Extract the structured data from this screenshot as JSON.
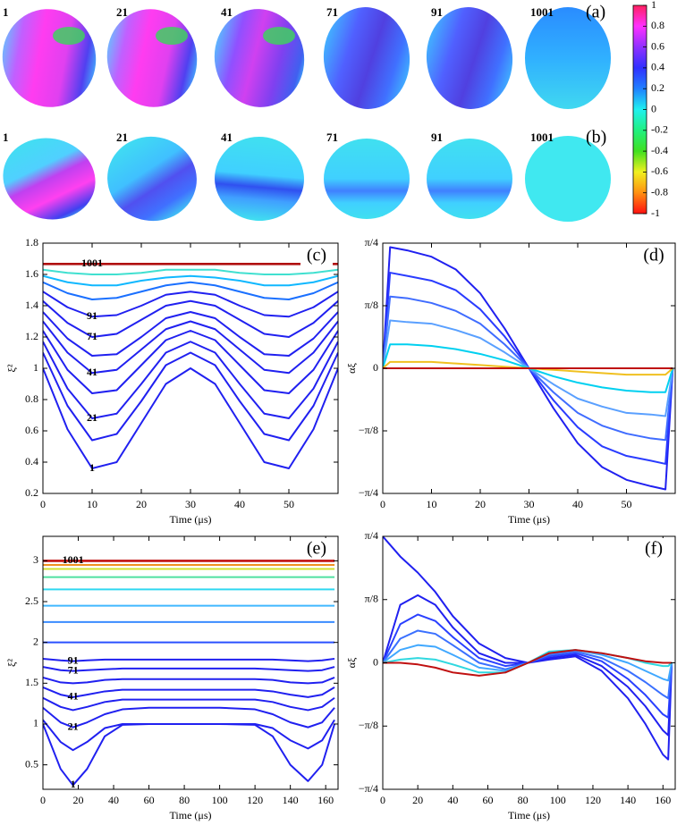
{
  "figure": {
    "rows": [
      {
        "panel": "(a)",
        "frames": [
          "1",
          "21",
          "41",
          "71",
          "91",
          "1001"
        ]
      },
      {
        "panel": "(b)",
        "frames": [
          "1",
          "21",
          "41",
          "71",
          "91",
          "1001"
        ]
      }
    ],
    "colorbar": {
      "ylim": [
        -1,
        1
      ],
      "yticks": [
        1,
        0.8,
        0.6,
        0.4,
        0.2,
        0,
        -0.2,
        -0.4,
        -0.6,
        -0.8,
        -1
      ]
    }
  },
  "chart_data": [
    {
      "type": "line",
      "panel_label": "(c)",
      "xlabel": "Time (μs)",
      "ylabel": "ξ²",
      "xlim": [
        0,
        60
      ],
      "xticks": [
        0,
        10,
        20,
        30,
        40,
        50
      ],
      "ylim": [
        0.2,
        1.8
      ],
      "yticks": [
        0.2,
        0.4,
        0.6,
        0.8,
        1,
        1.2,
        1.4,
        1.6,
        1.8
      ],
      "x": [
        0,
        5,
        10,
        15,
        20,
        25,
        30,
        35,
        40,
        45,
        50,
        55,
        60
      ],
      "series": [
        {
          "name": "1",
          "color": "#2020f0",
          "values": [
            1.0,
            0.61,
            0.36,
            0.4,
            0.65,
            0.9,
            1.0,
            0.9,
            0.65,
            0.4,
            0.36,
            0.61,
            1.0
          ]
        },
        {
          "color": "#2020f0",
          "values": [
            1.1,
            0.76,
            0.54,
            0.58,
            0.79,
            1.02,
            1.1,
            1.02,
            0.79,
            0.58,
            0.54,
            0.76,
            1.1
          ]
        },
        {
          "name": "21",
          "color": "#2020f0",
          "values": [
            1.17,
            0.87,
            0.68,
            0.71,
            0.9,
            1.1,
            1.17,
            1.1,
            0.9,
            0.71,
            0.68,
            0.87,
            1.17
          ]
        },
        {
          "color": "#2020f0",
          "values": [
            1.24,
            0.99,
            0.84,
            0.86,
            1.02,
            1.18,
            1.24,
            1.18,
            1.02,
            0.86,
            0.84,
            0.99,
            1.24
          ]
        },
        {
          "name": "41",
          "color": "#2020f0",
          "values": [
            1.3,
            1.1,
            0.97,
            0.99,
            1.12,
            1.25,
            1.3,
            1.25,
            1.12,
            0.99,
            0.97,
            1.1,
            1.3
          ]
        },
        {
          "color": "#2020f0",
          "values": [
            1.36,
            1.19,
            1.08,
            1.09,
            1.2,
            1.32,
            1.36,
            1.32,
            1.2,
            1.09,
            1.08,
            1.19,
            1.36
          ]
        },
        {
          "name": "71",
          "color": "#2020f0",
          "values": [
            1.43,
            1.29,
            1.2,
            1.22,
            1.31,
            1.4,
            1.43,
            1.4,
            1.31,
            1.22,
            1.2,
            1.29,
            1.43
          ]
        },
        {
          "name": "91",
          "color": "#2020f0",
          "values": [
            1.49,
            1.39,
            1.33,
            1.34,
            1.4,
            1.47,
            1.49,
            1.47,
            1.4,
            1.34,
            1.33,
            1.39,
            1.49
          ]
        },
        {
          "color": "#1a70ff",
          "values": [
            1.55,
            1.48,
            1.44,
            1.45,
            1.49,
            1.53,
            1.55,
            1.53,
            1.49,
            1.45,
            1.44,
            1.48,
            1.55
          ]
        },
        {
          "color": "#10b8ff",
          "values": [
            1.59,
            1.55,
            1.53,
            1.53,
            1.56,
            1.58,
            1.59,
            1.58,
            1.56,
            1.53,
            1.53,
            1.55,
            1.59
          ]
        },
        {
          "color": "#40e0d0",
          "values": [
            1.63,
            1.61,
            1.6,
            1.6,
            1.61,
            1.63,
            1.63,
            1.63,
            1.61,
            1.6,
            1.6,
            1.61,
            1.63
          ]
        },
        {
          "name": "1001",
          "color": "#b01010",
          "values": [
            1.667,
            1.667,
            1.667,
            1.667,
            1.667,
            1.667,
            1.667,
            1.667,
            1.667,
            1.667,
            1.667,
            1.667,
            1.667
          ]
        }
      ]
    },
    {
      "type": "line",
      "panel_label": "(d)",
      "xlabel": "Time (μs)",
      "ylabel": "αξ",
      "xlim": [
        0,
        60
      ],
      "xticks": [
        0,
        10,
        20,
        30,
        40,
        50
      ],
      "ylim": [
        -0.785398,
        0.785398
      ],
      "yticks": [
        {
          "value": 0.785398,
          "label": "π/4"
        },
        {
          "value": 0.392699,
          "label": "π/8"
        },
        0,
        {
          "value": -0.392699,
          "label": "−π/8"
        },
        {
          "value": -0.785398,
          "label": "−π/4"
        }
      ],
      "x": [
        0,
        1.5,
        5,
        10,
        15,
        20,
        25,
        30,
        35,
        40,
        45,
        50,
        55,
        58,
        59.5
      ],
      "series": [
        {
          "color": "#2020f0",
          "values": [
            0,
            0.76,
            0.74,
            0.7,
            0.62,
            0.47,
            0.25,
            0,
            -0.25,
            -0.47,
            -0.62,
            -0.7,
            -0.74,
            -0.76,
            0
          ]
        },
        {
          "color": "#2a3cff",
          "values": [
            0,
            0.6,
            0.58,
            0.55,
            0.49,
            0.37,
            0.2,
            0,
            -0.2,
            -0.37,
            -0.49,
            -0.55,
            -0.58,
            -0.6,
            0
          ]
        },
        {
          "color": "#3f6cff",
          "values": [
            0,
            0.45,
            0.44,
            0.41,
            0.36,
            0.28,
            0.15,
            0,
            -0.15,
            -0.28,
            -0.36,
            -0.41,
            -0.44,
            -0.45,
            0
          ]
        },
        {
          "color": "#5aa0ff",
          "values": [
            0,
            0.3,
            0.29,
            0.28,
            0.24,
            0.19,
            0.1,
            0,
            -0.1,
            -0.19,
            -0.24,
            -0.28,
            -0.29,
            -0.3,
            0
          ]
        },
        {
          "color": "#00d0f0",
          "values": [
            0,
            0.15,
            0.15,
            0.14,
            0.12,
            0.09,
            0.05,
            0,
            -0.05,
            -0.09,
            -0.12,
            -0.14,
            -0.15,
            -0.15,
            0
          ]
        },
        {
          "color": "#f0c020",
          "values": [
            0,
            0.04,
            0.04,
            0.04,
            0.03,
            0.02,
            0.01,
            0,
            -0.01,
            -0.02,
            -0.03,
            -0.04,
            -0.04,
            -0.04,
            0
          ]
        },
        {
          "color": "#c01010",
          "values": [
            0,
            0,
            0,
            0,
            0,
            0,
            0,
            0,
            0,
            0,
            0,
            0,
            0,
            0,
            0
          ]
        }
      ]
    },
    {
      "type": "line",
      "panel_label": "(e)",
      "xlabel": "Time (μs)",
      "ylabel": "ξ²",
      "xlim": [
        0,
        167
      ],
      "xticks": [
        0,
        20,
        40,
        60,
        80,
        100,
        120,
        140,
        160
      ],
      "ylim": [
        0.2,
        3.3
      ],
      "yticks": [
        0.5,
        1,
        1.5,
        2,
        2.5,
        3
      ],
      "x": [
        0,
        10,
        17,
        25,
        35,
        45,
        60,
        80,
        100,
        120,
        130,
        140,
        150,
        158,
        165
      ],
      "series": [
        {
          "name": "1",
          "color": "#2020f0",
          "values": [
            1.0,
            0.45,
            0.25,
            0.45,
            0.85,
            0.99,
            1.0,
            1.0,
            1.0,
            0.99,
            0.85,
            0.5,
            0.3,
            0.5,
            1.0
          ]
        },
        {
          "color": "#2020f0",
          "values": [
            1.05,
            0.78,
            0.68,
            0.78,
            0.95,
            1.0,
            1.0,
            1.0,
            1.0,
            1.0,
            0.95,
            0.8,
            0.7,
            0.8,
            1.05
          ]
        },
        {
          "name": "21",
          "color": "#2020f0",
          "values": [
            1.2,
            1.02,
            0.96,
            1.02,
            1.12,
            1.18,
            1.2,
            1.2,
            1.2,
            1.18,
            1.12,
            1.02,
            0.96,
            1.02,
            1.2
          ]
        },
        {
          "color": "#2020f0",
          "values": [
            1.32,
            1.21,
            1.17,
            1.21,
            1.27,
            1.3,
            1.3,
            1.3,
            1.3,
            1.3,
            1.27,
            1.21,
            1.17,
            1.21,
            1.32
          ]
        },
        {
          "name": "41",
          "color": "#2020f0",
          "values": [
            1.45,
            1.36,
            1.33,
            1.36,
            1.4,
            1.42,
            1.42,
            1.42,
            1.42,
            1.42,
            1.4,
            1.36,
            1.33,
            1.36,
            1.45
          ]
        },
        {
          "color": "#2020f0",
          "values": [
            1.57,
            1.51,
            1.5,
            1.51,
            1.54,
            1.55,
            1.55,
            1.55,
            1.55,
            1.55,
            1.54,
            1.51,
            1.5,
            1.51,
            1.57
          ]
        },
        {
          "name": "71",
          "color": "#2020f0",
          "values": [
            1.7,
            1.66,
            1.65,
            1.66,
            1.67,
            1.68,
            1.68,
            1.68,
            1.68,
            1.68,
            1.67,
            1.66,
            1.65,
            1.66,
            1.7
          ]
        },
        {
          "name": "91",
          "color": "#2020f0",
          "values": [
            1.8,
            1.78,
            1.77,
            1.78,
            1.79,
            1.79,
            1.79,
            1.79,
            1.79,
            1.79,
            1.79,
            1.78,
            1.77,
            1.78,
            1.8
          ]
        },
        {
          "color": "#2a50ff",
          "values": [
            2.0,
            2.0,
            2.0,
            2.0,
            2.0,
            2.0,
            2.0,
            2.0,
            2.0,
            2.0,
            2.0,
            2.0,
            2.0,
            2.0,
            2.0
          ]
        },
        {
          "color": "#3a8cff",
          "values": [
            2.25,
            2.25,
            2.25,
            2.25,
            2.25,
            2.25,
            2.25,
            2.25,
            2.25,
            2.25,
            2.25,
            2.25,
            2.25,
            2.25,
            2.25
          ]
        },
        {
          "color": "#40b8ff",
          "values": [
            2.45,
            2.45,
            2.45,
            2.45,
            2.45,
            2.45,
            2.45,
            2.45,
            2.45,
            2.45,
            2.45,
            2.45,
            2.45,
            2.45,
            2.45
          ]
        },
        {
          "color": "#30d8f0",
          "values": [
            2.65,
            2.65,
            2.65,
            2.65,
            2.65,
            2.65,
            2.65,
            2.65,
            2.65,
            2.65,
            2.65,
            2.65,
            2.65,
            2.65,
            2.65
          ]
        },
        {
          "color": "#50e0a0",
          "values": [
            2.8,
            2.8,
            2.8,
            2.8,
            2.8,
            2.8,
            2.8,
            2.8,
            2.8,
            2.8,
            2.8,
            2.8,
            2.8,
            2.8,
            2.8
          ]
        },
        {
          "color": "#d0e030",
          "values": [
            2.9,
            2.9,
            2.9,
            2.9,
            2.9,
            2.9,
            2.9,
            2.9,
            2.9,
            2.9,
            2.9,
            2.9,
            2.9,
            2.9,
            2.9
          ]
        },
        {
          "color": "#f09020",
          "values": [
            2.95,
            2.95,
            2.95,
            2.95,
            2.95,
            2.95,
            2.95,
            2.95,
            2.95,
            2.95,
            2.95,
            2.95,
            2.95,
            2.95,
            2.95
          ]
        },
        {
          "name": "1001",
          "color": "#c01010",
          "values": [
            3.0,
            3.0,
            3.0,
            3.0,
            3.0,
            3.0,
            3.0,
            3.0,
            3.0,
            3.0,
            3.0,
            3.0,
            3.0,
            3.0,
            3.0
          ]
        }
      ]
    },
    {
      "type": "line",
      "panel_label": "(f)",
      "xlabel": "Time (μs)",
      "ylabel": "αξ",
      "xlim": [
        0,
        167
      ],
      "xticks": [
        0,
        20,
        40,
        60,
        80,
        100,
        120,
        140,
        160
      ],
      "ylim": [
        -0.785398,
        0.785398
      ],
      "yticks": [
        {
          "value": 0.785398,
          "label": "π/4"
        },
        {
          "value": 0.392699,
          "label": "π/8"
        },
        0,
        {
          "value": -0.392699,
          "label": "−π/8"
        },
        {
          "value": -0.785398,
          "label": "−π/4"
        }
      ],
      "x": [
        0,
        10,
        20,
        30,
        40,
        55,
        70,
        83,
        95,
        110,
        125,
        140,
        150,
        160,
        163,
        165
      ],
      "series": [
        {
          "color": "#2020f0",
          "values": [
            0.785,
            0.66,
            0.56,
            0.44,
            0.29,
            0.12,
            0.03,
            0,
            0.02,
            0.04,
            -0.05,
            -0.22,
            -0.38,
            -0.57,
            -0.6,
            0
          ]
        },
        {
          "color": "#2020f0",
          "values": [
            0,
            0.36,
            0.42,
            0.36,
            0.22,
            0.06,
            0,
            0,
            0.03,
            0.05,
            -0.02,
            -0.15,
            -0.27,
            -0.42,
            -0.45,
            0
          ]
        },
        {
          "color": "#2a40ff",
          "values": [
            0,
            0.24,
            0.3,
            0.26,
            0.16,
            0.03,
            -0.02,
            0,
            0.04,
            0.06,
            0.01,
            -0.1,
            -0.2,
            -0.32,
            -0.34,
            0
          ]
        },
        {
          "color": "#3a70ff",
          "values": [
            0,
            0.15,
            0.2,
            0.18,
            0.11,
            0,
            -0.04,
            0,
            0.05,
            0.07,
            0.03,
            -0.05,
            -0.12,
            -0.2,
            -0.22,
            0
          ]
        },
        {
          "color": "#40a8ff",
          "values": [
            0,
            0.08,
            0.11,
            0.1,
            0.05,
            -0.03,
            -0.05,
            0,
            0.06,
            0.08,
            0.05,
            0,
            -0.05,
            -0.1,
            -0.11,
            0
          ]
        },
        {
          "color": "#30d8e0",
          "values": [
            0,
            0.02,
            0.03,
            0.02,
            -0.01,
            -0.06,
            -0.06,
            0,
            0.07,
            0.08,
            0.06,
            0.03,
            0,
            -0.02,
            -0.02,
            0
          ]
        },
        {
          "color": "#c01010",
          "values": [
            0,
            0,
            -0.01,
            -0.03,
            -0.06,
            -0.08,
            -0.06,
            0,
            0.06,
            0.08,
            0.06,
            0.03,
            0.01,
            0,
            0,
            0
          ]
        }
      ]
    }
  ]
}
